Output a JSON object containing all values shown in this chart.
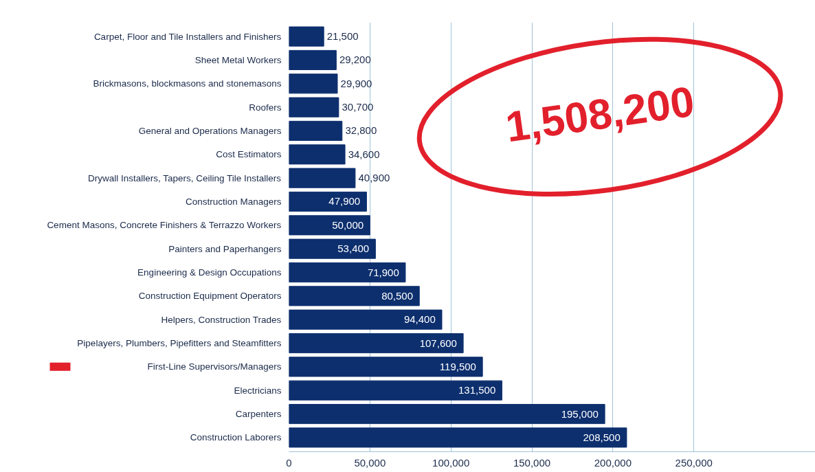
{
  "chart_data": {
    "type": "bar",
    "orientation": "horizontal",
    "categories": [
      "Carpet, Floor and Tile Installers and Finishers",
      "Sheet Metal Workers",
      "Brickmasons, blockmasons and stonemasons",
      "Roofers",
      "General and Operations Managers",
      "Cost Estimators",
      "Drywall Installers, Tapers, Ceiling Tile Installers",
      "Construction Managers",
      "Cement Masons, Concrete Finishers & Terrazzo Workers",
      "Painters and Paperhangers",
      "Engineering & Design Occupations",
      "Construction Equipment Operators",
      "Helpers, Construction Trades",
      "Pipelayers, Plumbers, Pipefitters and Steamfitters",
      "First-Line Supervisors/Managers",
      "Electricians",
      "Carpenters",
      "Construction Laborers"
    ],
    "values": [
      21500,
      29200,
      29900,
      30700,
      32800,
      34600,
      40900,
      47900,
      50000,
      53400,
      71900,
      80500,
      94400,
      107600,
      119500,
      131500,
      195000,
      208500
    ],
    "color": "#0d2f6e",
    "grid": "x",
    "value_labels": [
      "21,500",
      "29,200",
      "29,900",
      "30,700",
      "32,800",
      "34,600",
      "40,900",
      "47,900",
      "50,000",
      "53,400",
      "71,900",
      "80,500",
      "94,400",
      "107,600",
      "119,500",
      "131,500",
      "195,000",
      "208,500"
    ],
    "xlim": [
      0,
      325000
    ],
    "xticks": [
      0,
      {
        "value": 50000,
        "label": "50,000"
      },
      {
        "value": 100000,
        "label": "100,000"
      },
      {
        "value": 150000,
        "label": "150,000"
      },
      {
        "value": 200000,
        "label": "200,000"
      },
      {
        "value": 250000,
        "label": "250,000"
      }
    ],
    "annotations": [
      "1,508,200"
    ]
  }
}
